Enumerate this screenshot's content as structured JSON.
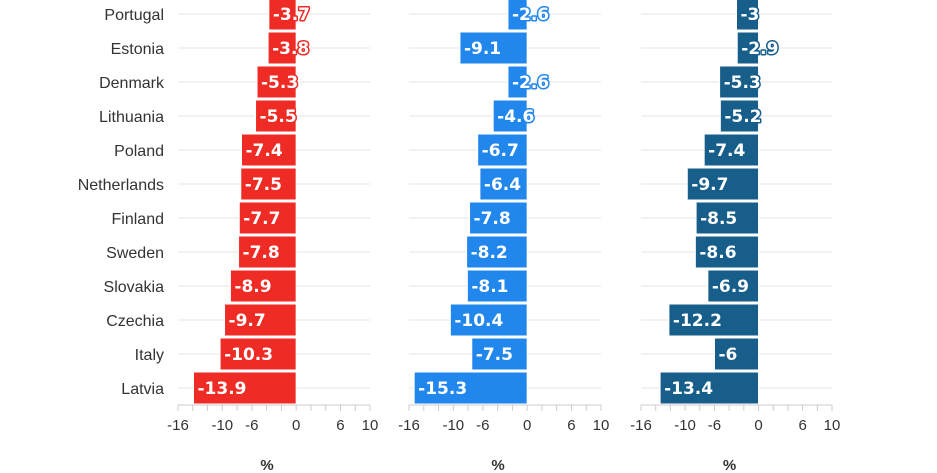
{
  "chart_data": {
    "type": "bar",
    "orientation": "horizontal",
    "grid": true,
    "categories": [
      "Portugal",
      "Estonia",
      "Denmark",
      "Lithuania",
      "Poland",
      "Netherlands",
      "Finland",
      "Sweden",
      "Slovakia",
      "Czechia",
      "Italy",
      "Latvia"
    ],
    "panels": [
      {
        "color": "#ee2b24",
        "xlabel": "%",
        "xlim": [
          -16,
          10
        ],
        "xticks": [
          "-16",
          "-10",
          "-6",
          "0",
          "6",
          "10"
        ],
        "values": [
          -3.7,
          -3.8,
          -5.3,
          -5.5,
          -7.4,
          -7.5,
          -7.7,
          -7.8,
          -8.9,
          -9.7,
          -10.3,
          -13.9
        ],
        "labels": [
          "-3.7",
          "-3.8",
          "-5.3",
          "-5.5",
          "-7.4",
          "-7.5",
          "-7.7",
          "-7.8",
          "-8.9",
          "-9.7",
          "-10.3",
          "-13.9"
        ]
      },
      {
        "color": "#2187ec",
        "xlabel": "%",
        "xlim": [
          -16,
          10
        ],
        "xticks": [
          "-16",
          "-10",
          "-6",
          "0",
          "6",
          "10"
        ],
        "values": [
          -2.6,
          -9.1,
          -2.6,
          -4.6,
          -6.7,
          -6.4,
          -7.8,
          -8.2,
          -8.1,
          -10.4,
          -7.5,
          -15.3
        ],
        "labels": [
          "-2.6",
          "-9.1",
          "-2.6",
          "-4.6",
          "-6.7",
          "-6.4",
          "-7.8",
          "-8.2",
          "-8.1",
          "-10.4",
          "-7.5",
          "-15.3"
        ]
      },
      {
        "color": "#175e8a",
        "xlabel": "%",
        "xlim": [
          -16,
          10
        ],
        "xticks": [
          "-16",
          "-10",
          "-6",
          "0",
          "6",
          "10"
        ],
        "values": [
          -3,
          -2.9,
          -5.3,
          -5.2,
          -7.4,
          -9.7,
          -8.5,
          -8.6,
          -6.9,
          -12.2,
          -6,
          -13.4
        ],
        "labels": [
          "-3",
          "-2.9",
          "-5.3",
          "-5.2",
          "-7.4",
          "-9.7",
          "-8.5",
          "-8.6",
          "-6.9",
          "-12.2",
          "-6",
          "-13.4"
        ]
      }
    ]
  }
}
